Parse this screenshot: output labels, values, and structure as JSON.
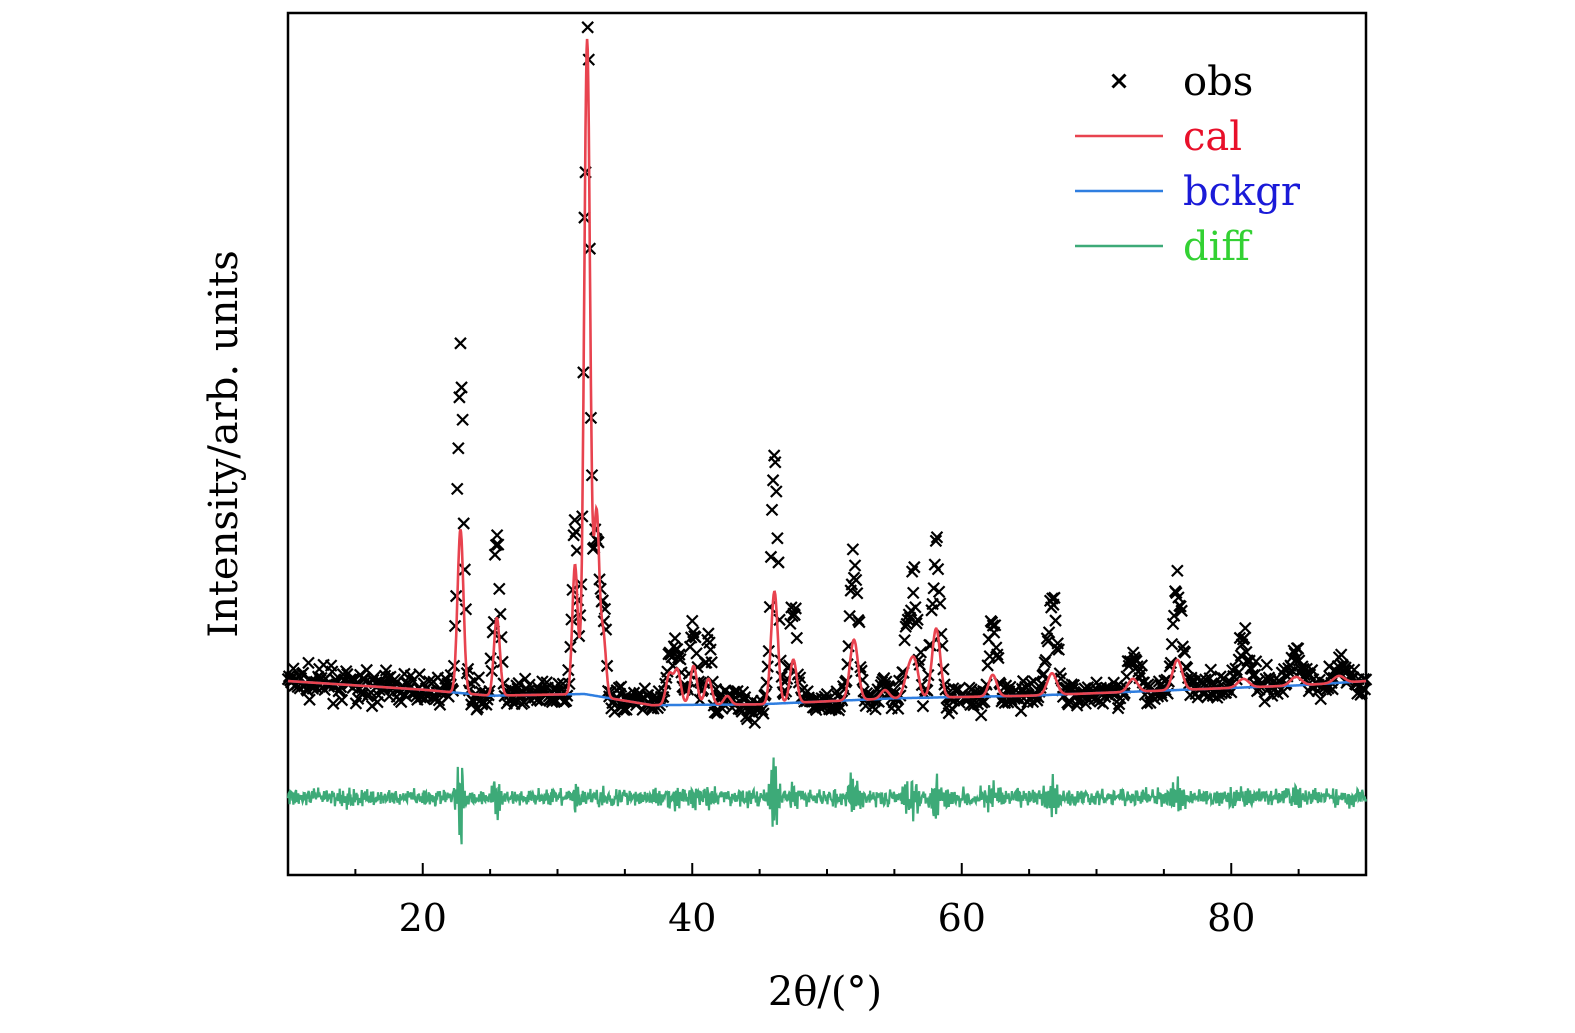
{
  "chart_data": {
    "type": "line",
    "title": "",
    "xlabel": "2θ/(°)",
    "ylabel": "Intensity/arb. units",
    "xlim": [
      10,
      90
    ],
    "ylim": [
      0,
      1
    ],
    "x_ticks": [
      20,
      40,
      60,
      80
    ],
    "x_tick_labels": [
      "20",
      "40",
      "60",
      "80"
    ],
    "y_ticks_shown": false,
    "grid": false,
    "legend_position": "top-right",
    "legend": [
      {
        "key": "obs",
        "label": "obs",
        "marker": "x",
        "color": "#000000",
        "text_color": "#000000"
      },
      {
        "key": "cal",
        "label": "cal",
        "marker": "line",
        "color": "#e8434f",
        "text_color": "#e8102a"
      },
      {
        "key": "bckgr",
        "label": "bckgr",
        "marker": "line",
        "color": "#2f7ee0",
        "text_color": "#1a1ad8"
      },
      {
        "key": "diff",
        "label": "diff",
        "marker": "line",
        "color": "#3daa78",
        "text_color": "#33d133"
      }
    ],
    "baseline_level": 0.215,
    "diff_baseline": 0.09,
    "background_points": [
      [
        10,
        0.225
      ],
      [
        20,
        0.215
      ],
      [
        25,
        0.208
      ],
      [
        32,
        0.21
      ],
      [
        37,
        0.197
      ],
      [
        45,
        0.198
      ],
      [
        55,
        0.205
      ],
      [
        65,
        0.208
      ],
      [
        75,
        0.214
      ],
      [
        85,
        0.22
      ],
      [
        90,
        0.225
      ]
    ],
    "peaks": [
      {
        "pos": 22.8,
        "cal_height": 0.19,
        "obs_height": 0.4,
        "width": 0.22
      },
      {
        "pos": 25.5,
        "cal_height": 0.09,
        "obs_height": 0.18,
        "width": 0.22
      },
      {
        "pos": 31.3,
        "cal_height": 0.15,
        "obs_height": 0.2,
        "width": 0.2
      },
      {
        "pos": 32.2,
        "cal_height": 0.76,
        "obs_height": 0.77,
        "width": 0.22
      },
      {
        "pos": 32.9,
        "cal_height": 0.21,
        "obs_height": 0.2,
        "width": 0.2
      },
      {
        "pos": 33.4,
        "cal_height": 0.07,
        "obs_height": 0.1,
        "width": 0.2
      },
      {
        "pos": 38.3,
        "cal_height": 0.035,
        "obs_height": 0.05,
        "width": 0.25
      },
      {
        "pos": 38.9,
        "cal_height": 0.04,
        "obs_height": 0.07,
        "width": 0.25
      },
      {
        "pos": 40.1,
        "cal_height": 0.045,
        "obs_height": 0.09,
        "width": 0.25
      },
      {
        "pos": 41.2,
        "cal_height": 0.03,
        "obs_height": 0.07,
        "width": 0.25
      },
      {
        "pos": 42.6,
        "cal_height": 0.01,
        "obs_height": 0.02,
        "width": 0.25
      },
      {
        "pos": 46.1,
        "cal_height": 0.13,
        "obs_height": 0.3,
        "width": 0.25
      },
      {
        "pos": 47.5,
        "cal_height": 0.05,
        "obs_height": 0.11,
        "width": 0.25
      },
      {
        "pos": 52.0,
        "cal_height": 0.07,
        "obs_height": 0.16,
        "width": 0.3
      },
      {
        "pos": 54.3,
        "cal_height": 0.01,
        "obs_height": 0.02,
        "width": 0.3
      },
      {
        "pos": 56.0,
        "cal_height": 0.025,
        "obs_height": 0.07,
        "width": 0.3
      },
      {
        "pos": 56.5,
        "cal_height": 0.04,
        "obs_height": 0.1,
        "width": 0.3
      },
      {
        "pos": 58.1,
        "cal_height": 0.08,
        "obs_height": 0.17,
        "width": 0.3
      },
      {
        "pos": 62.3,
        "cal_height": 0.025,
        "obs_height": 0.08,
        "width": 0.3
      },
      {
        "pos": 66.7,
        "cal_height": 0.025,
        "obs_height": 0.11,
        "width": 0.35
      },
      {
        "pos": 72.7,
        "cal_height": 0.015,
        "obs_height": 0.04,
        "width": 0.35
      },
      {
        "pos": 76.0,
        "cal_height": 0.035,
        "obs_height": 0.12,
        "width": 0.35
      },
      {
        "pos": 80.9,
        "cal_height": 0.01,
        "obs_height": 0.05,
        "width": 0.4
      },
      {
        "pos": 84.8,
        "cal_height": 0.01,
        "obs_height": 0.04,
        "width": 0.4
      },
      {
        "pos": 88.0,
        "cal_height": 0.008,
        "obs_height": 0.02,
        "width": 0.4
      }
    ]
  }
}
